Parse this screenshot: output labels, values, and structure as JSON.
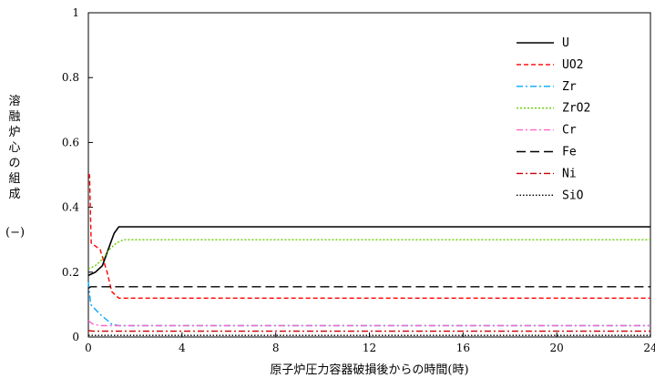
{
  "chart_data": {
    "type": "line",
    "xlabel": "原子炉圧力容器破損後からの時間(時)",
    "ylabel": "溶融炉心の組成",
    "yunit": "(−)",
    "xlim": [
      0,
      24
    ],
    "ylim": [
      0,
      1
    ],
    "xticks": [
      "0",
      "4",
      "8",
      "12",
      "16",
      "20",
      "24"
    ],
    "yticks": [
      "0",
      "0.2",
      "0.4",
      "0.6",
      "0.8",
      "1"
    ],
    "legend_position": "top-right",
    "grid": false,
    "series": [
      {
        "name": "U",
        "color": "#000000",
        "dash": "solid",
        "points": [
          [
            0,
            0.19
          ],
          [
            0.3,
            0.2
          ],
          [
            0.6,
            0.22
          ],
          [
            0.9,
            0.28
          ],
          [
            1.1,
            0.32
          ],
          [
            1.3,
            0.34
          ],
          [
            24,
            0.34
          ]
        ]
      },
      {
        "name": "UO2",
        "color": "#ff0000",
        "dash": "short",
        "points": [
          [
            0,
            0.5
          ],
          [
            0.05,
            0.5
          ],
          [
            0.12,
            0.29
          ],
          [
            0.5,
            0.27
          ],
          [
            0.8,
            0.2
          ],
          [
            1.0,
            0.14
          ],
          [
            1.3,
            0.12
          ],
          [
            24,
            0.12
          ]
        ]
      },
      {
        "name": "Zr",
        "color": "#00aaff",
        "dash": "dashdot",
        "points": [
          [
            0,
            0.17
          ],
          [
            0.1,
            0.1
          ],
          [
            0.5,
            0.07
          ],
          [
            1.0,
            0.04
          ],
          [
            1.3,
            0.035
          ],
          [
            24,
            0.035
          ]
        ]
      },
      {
        "name": "ZrO2",
        "color": "#66cc00",
        "dash": "dotted",
        "points": [
          [
            0,
            0.21
          ],
          [
            0.3,
            0.22
          ],
          [
            0.6,
            0.24
          ],
          [
            0.9,
            0.27
          ],
          [
            1.2,
            0.29
          ],
          [
            1.5,
            0.3
          ],
          [
            24,
            0.3
          ]
        ]
      },
      {
        "name": "Cr",
        "color": "#ff66cc",
        "dash": "dashdot",
        "points": [
          [
            0,
            0.05
          ],
          [
            0.2,
            0.04
          ],
          [
            0.5,
            0.035
          ],
          [
            24,
            0.035
          ]
        ]
      },
      {
        "name": "Fe",
        "color": "#000000",
        "dash": "long",
        "points": [
          [
            0,
            0.15
          ],
          [
            0.1,
            0.155
          ],
          [
            24,
            0.155
          ]
        ]
      },
      {
        "name": "Ni",
        "color": "#cc0000",
        "dash": "dashdot",
        "points": [
          [
            0,
            0.02
          ],
          [
            0.2,
            0.018
          ],
          [
            24,
            0.018
          ]
        ]
      },
      {
        "name": "SiO",
        "color": "#000000",
        "dash": "fine",
        "points": [
          [
            0,
            0.005
          ],
          [
            24,
            0.005
          ]
        ]
      }
    ]
  }
}
